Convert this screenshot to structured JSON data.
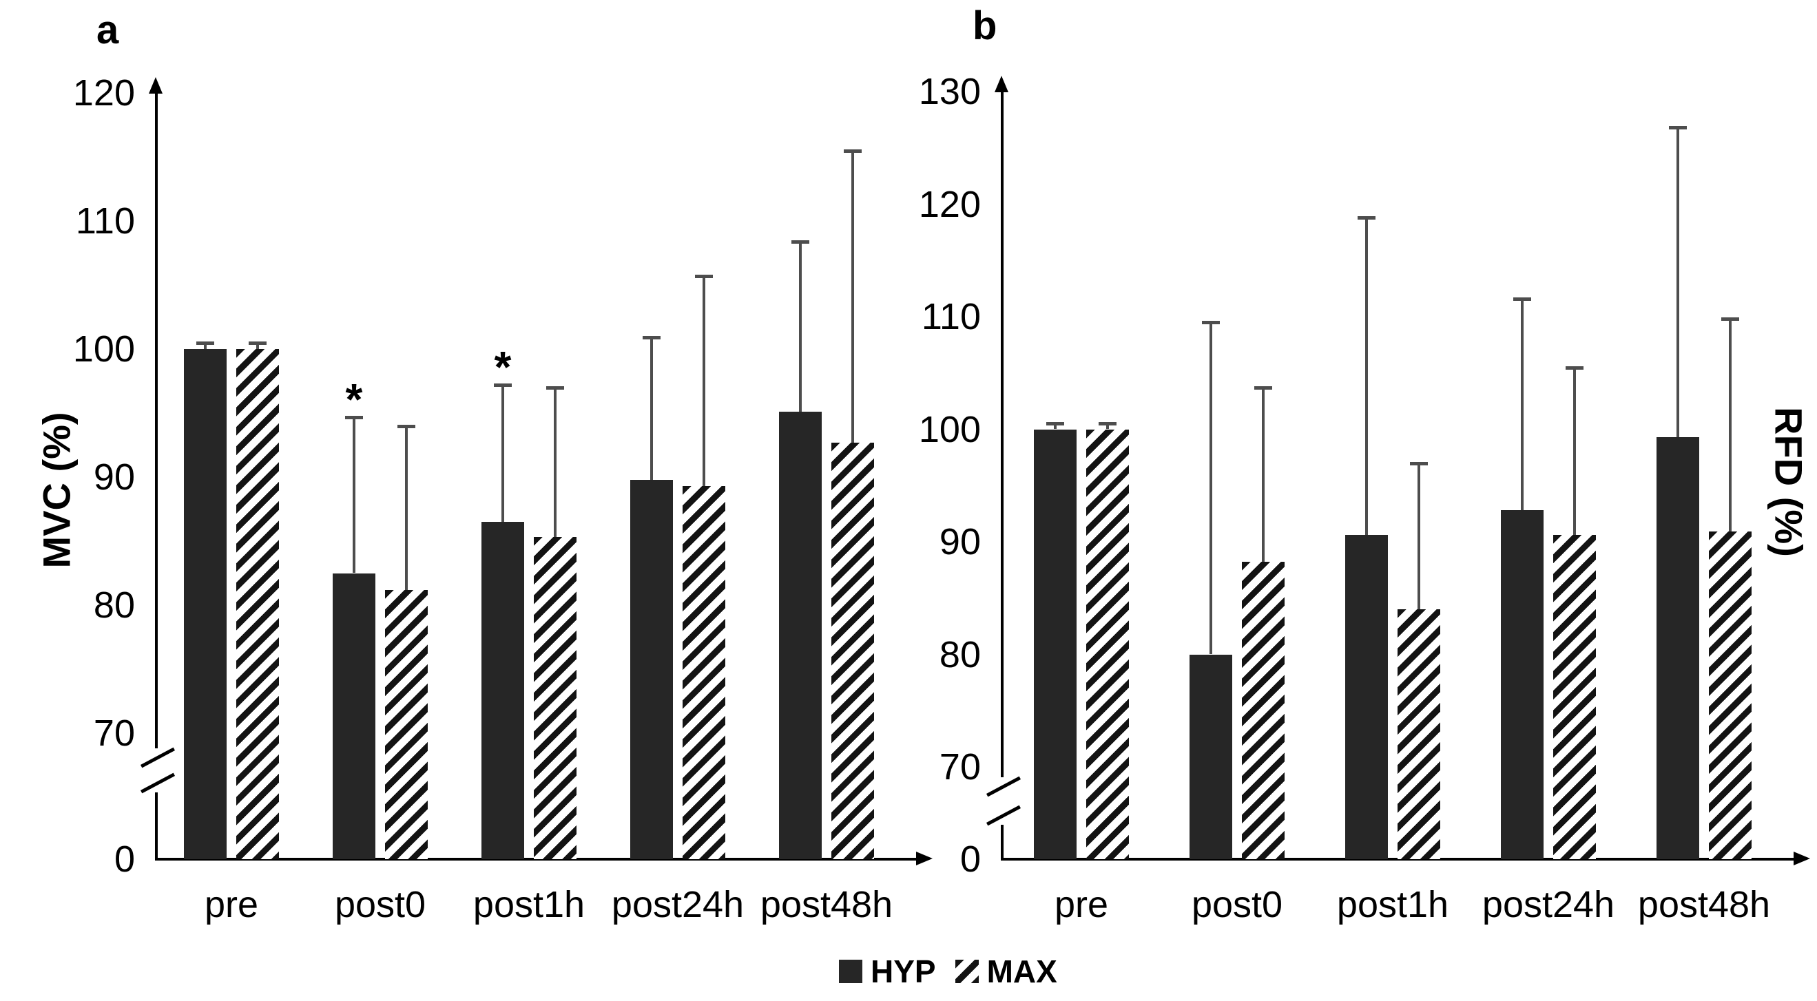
{
  "colors": {
    "bar_fill": "#262626",
    "hatch_line": "#131313",
    "hatch_background": "#ffffff",
    "error_bar": "#4d4d4d",
    "axis": "#000000",
    "text": "#000000"
  },
  "legend": {
    "items": [
      {
        "label": "HYP",
        "pattern": "solid"
      },
      {
        "label": "MAX",
        "pattern": "hatched"
      }
    ]
  },
  "chart_data": [
    {
      "type": "bar",
      "panel_label": "a",
      "ylabel": "MVC (%)",
      "ylabel_side": "left",
      "axis_break": true,
      "y_origin_label": "0",
      "yticks": [
        120,
        110,
        100,
        90,
        80,
        70
      ],
      "ylim_linear": [
        70,
        120
      ],
      "grid": false,
      "categories": [
        "pre",
        "post0",
        "post1h",
        "post24h",
        "post48h"
      ],
      "series": [
        {
          "name": "HYP",
          "pattern": "solid",
          "values": [
            100,
            82.5,
            86.5,
            89.8,
            95.1
          ],
          "errors_plus": [
            0.5,
            12.2,
            10.7,
            11.1,
            13.3
          ]
        },
        {
          "name": "MAX",
          "pattern": "hatched",
          "values": [
            100,
            81.2,
            85.3,
            89.3,
            92.7
          ],
          "errors_plus": [
            0.5,
            12.8,
            11.7,
            16.4,
            22.8
          ]
        }
      ],
      "significance_marks": [
        {
          "text": "*",
          "series": "HYP",
          "category": "post0"
        },
        {
          "text": "*",
          "series": "HYP",
          "category": "post1h"
        }
      ]
    },
    {
      "type": "bar",
      "panel_label": "b",
      "ylabel": "RFD (%)",
      "ylabel_side": "right",
      "axis_break": true,
      "y_origin_label": "0",
      "yticks": [
        130,
        120,
        110,
        100,
        90,
        80,
        70
      ],
      "ylim_linear": [
        70,
        130
      ],
      "grid": false,
      "categories": [
        "pre",
        "post0",
        "post1h",
        "post24h",
        "post48h"
      ],
      "series": [
        {
          "name": "HYP",
          "pattern": "solid",
          "values": [
            100,
            80.0,
            90.6,
            92.8,
            99.3
          ],
          "errors_plus": [
            0.5,
            29.5,
            28.2,
            18.8,
            27.5
          ]
        },
        {
          "name": "MAX",
          "pattern": "hatched",
          "values": [
            100,
            88.2,
            84.0,
            90.6,
            90.9
          ],
          "errors_plus": [
            0.5,
            15.5,
            13.0,
            14.9,
            18.9
          ]
        }
      ],
      "significance_marks": []
    }
  ]
}
